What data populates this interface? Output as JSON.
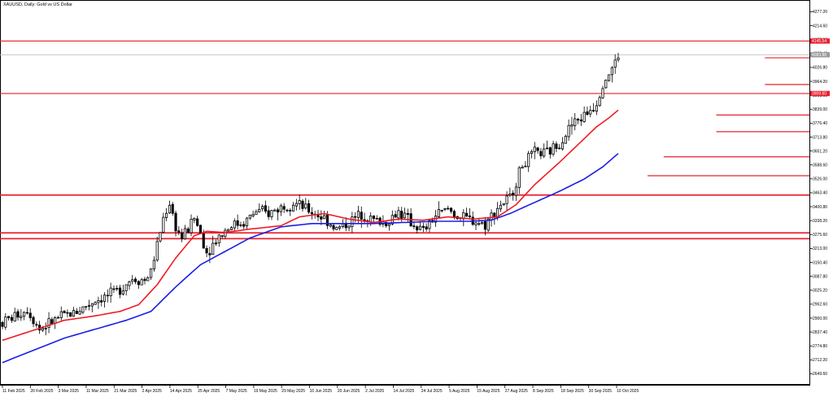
{
  "header": {
    "title": "XAUUSD, Daily:  Gold vs US Dollar"
  },
  "colors": {
    "level_line": "#e8212f",
    "ma_fast": "#ee1c24",
    "ma_slow": "#1b1ee6",
    "candle_up": "#ffffff",
    "candle_down": "#000000",
    "bid_line": "#c0c0c0",
    "tag_red": "#e8212f",
    "tag_grey": "#9a9a9a"
  },
  "chart_data": {
    "type": "candlestick",
    "symbol": "XAUUSD",
    "timeframe": "Daily",
    "title": "XAUUSD, Daily:  Gold vs US Dollar",
    "ylim": [
      2600,
      4330
    ],
    "y_ticks": [
      "4277.20",
      "4214.60",
      "4152.00",
      "4089.40",
      "4026.80",
      "3964.20",
      "3901.60",
      "3839.00",
      "3776.40",
      "3713.80",
      "3651.20",
      "3588.60",
      "3526.00",
      "3463.40",
      "3400.80",
      "3338.20",
      "3275.60",
      "3213.00",
      "3150.40",
      "3087.80",
      "3025.20",
      "2962.60",
      "2900.00",
      "2837.40",
      "2774.80",
      "2712.20",
      "2649.60"
    ],
    "x_ticks": [
      "11 Feb 2025",
      "20 Feb 2025",
      "3 Mar 2025",
      "11 Mar 2025",
      "21 Mar 2025",
      "2 Apr 2025",
      "14 Apr 2025",
      "25 Apr 2025",
      "7 May 2025",
      "19 May 2025",
      "29 May 2025",
      "10 Jun 2025",
      "20 Jun 2025",
      "2 Jul 2025",
      "14 Jul 2025",
      "24 Jul 2025",
      "5 Aug 2025",
      "15 Aug 2025",
      "27 Aug 2025",
      "8 Sep 2025",
      "18 Sep 2025",
      "30 Sep 2025",
      "10 Oct 2025"
    ],
    "price_tags": [
      {
        "label": "4145.54",
        "value": 4145.54,
        "style": "red"
      },
      {
        "label": "4083.88",
        "value": 4083.88,
        "style": "grey"
      },
      {
        "label": "3909.60",
        "value": 3909.6,
        "style": "red"
      }
    ],
    "horizontal_levels": [
      {
        "value": 4145.54,
        "x_start": 0.0,
        "thick": false
      },
      {
        "value": 3909.6,
        "x_start": 0.0,
        "thick": false
      },
      {
        "value": 3453.0,
        "x_start": 0.0,
        "thick": true
      },
      {
        "value": 3283.0,
        "x_start": 0.0,
        "thick": true
      },
      {
        "value": 3257.0,
        "x_start": 0.0,
        "thick": true
      },
      {
        "value": 4070.0,
        "x_start": 0.945,
        "thick": false
      },
      {
        "value": 3950.0,
        "x_start": 0.945,
        "thick": false
      },
      {
        "value": 3813.0,
        "x_start": 0.885,
        "thick": false
      },
      {
        "value": 3738.0,
        "x_start": 0.885,
        "thick": false
      },
      {
        "value": 3625.0,
        "x_start": 0.82,
        "thick": false
      },
      {
        "value": 3540.0,
        "x_start": 0.8,
        "thick": false
      }
    ],
    "bid": 4083.88,
    "anchors": [
      [
        0,
        2880
      ],
      [
        8,
        2940
      ],
      [
        12,
        2850
      ],
      [
        18,
        2900
      ],
      [
        24,
        2930
      ],
      [
        30,
        2980
      ],
      [
        36,
        3010
      ],
      [
        42,
        3080
      ],
      [
        46,
        3070
      ],
      [
        48,
        3110
      ],
      [
        50,
        3230
      ],
      [
        52,
        3350
      ],
      [
        54,
        3420
      ],
      [
        56,
        3310
      ],
      [
        58,
        3260
      ],
      [
        60,
        3300
      ],
      [
        62,
        3350
      ],
      [
        64,
        3280
      ],
      [
        66,
        3195
      ],
      [
        70,
        3270
      ],
      [
        74,
        3320
      ],
      [
        78,
        3330
      ],
      [
        82,
        3380
      ],
      [
        86,
        3370
      ],
      [
        90,
        3400
      ],
      [
        94,
        3420
      ],
      [
        98,
        3390
      ],
      [
        104,
        3350
      ],
      [
        108,
        3300
      ],
      [
        112,
        3330
      ],
      [
        116,
        3370
      ],
      [
        120,
        3340
      ],
      [
        124,
        3330
      ],
      [
        128,
        3380
      ],
      [
        132,
        3330
      ],
      [
        136,
        3290
      ],
      [
        140,
        3360
      ],
      [
        144,
        3390
      ],
      [
        148,
        3350
      ],
      [
        152,
        3340
      ],
      [
        156,
        3320
      ],
      [
        160,
        3400
      ],
      [
        164,
        3440
      ],
      [
        168,
        3590
      ],
      [
        172,
        3640
      ],
      [
        176,
        3640
      ],
      [
        180,
        3690
      ],
      [
        184,
        3770
      ],
      [
        188,
        3810
      ],
      [
        192,
        3870
      ],
      [
        194,
        3960
      ],
      [
        196,
        4000
      ],
      [
        198,
        4050
      ],
      [
        199,
        4080
      ]
    ],
    "ma_fast_anchors": [
      [
        0,
        2800
      ],
      [
        20,
        2890
      ],
      [
        30,
        2910
      ],
      [
        38,
        2930
      ],
      [
        44,
        2960
      ],
      [
        50,
        3050
      ],
      [
        56,
        3170
      ],
      [
        62,
        3270
      ],
      [
        66,
        3290
      ],
      [
        72,
        3285
      ],
      [
        80,
        3300
      ],
      [
        90,
        3315
      ],
      [
        96,
        3355
      ],
      [
        104,
        3370
      ],
      [
        112,
        3345
      ],
      [
        120,
        3330
      ],
      [
        128,
        3345
      ],
      [
        136,
        3340
      ],
      [
        144,
        3355
      ],
      [
        152,
        3345
      ],
      [
        160,
        3355
      ],
      [
        166,
        3410
      ],
      [
        172,
        3500
      ],
      [
        180,
        3600
      ],
      [
        186,
        3680
      ],
      [
        192,
        3760
      ],
      [
        196,
        3800
      ],
      [
        199,
        3835
      ]
    ],
    "ma_slow_anchors": [
      [
        0,
        2700
      ],
      [
        20,
        2810
      ],
      [
        30,
        2850
      ],
      [
        40,
        2890
      ],
      [
        48,
        2930
      ],
      [
        56,
        3040
      ],
      [
        64,
        3140
      ],
      [
        72,
        3200
      ],
      [
        80,
        3260
      ],
      [
        90,
        3310
      ],
      [
        100,
        3325
      ],
      [
        110,
        3325
      ],
      [
        120,
        3325
      ],
      [
        130,
        3330
      ],
      [
        140,
        3335
      ],
      [
        150,
        3335
      ],
      [
        158,
        3340
      ],
      [
        164,
        3370
      ],
      [
        172,
        3420
      ],
      [
        180,
        3470
      ],
      [
        188,
        3525
      ],
      [
        194,
        3580
      ],
      [
        199,
        3640
      ]
    ],
    "candle_count": 200
  }
}
